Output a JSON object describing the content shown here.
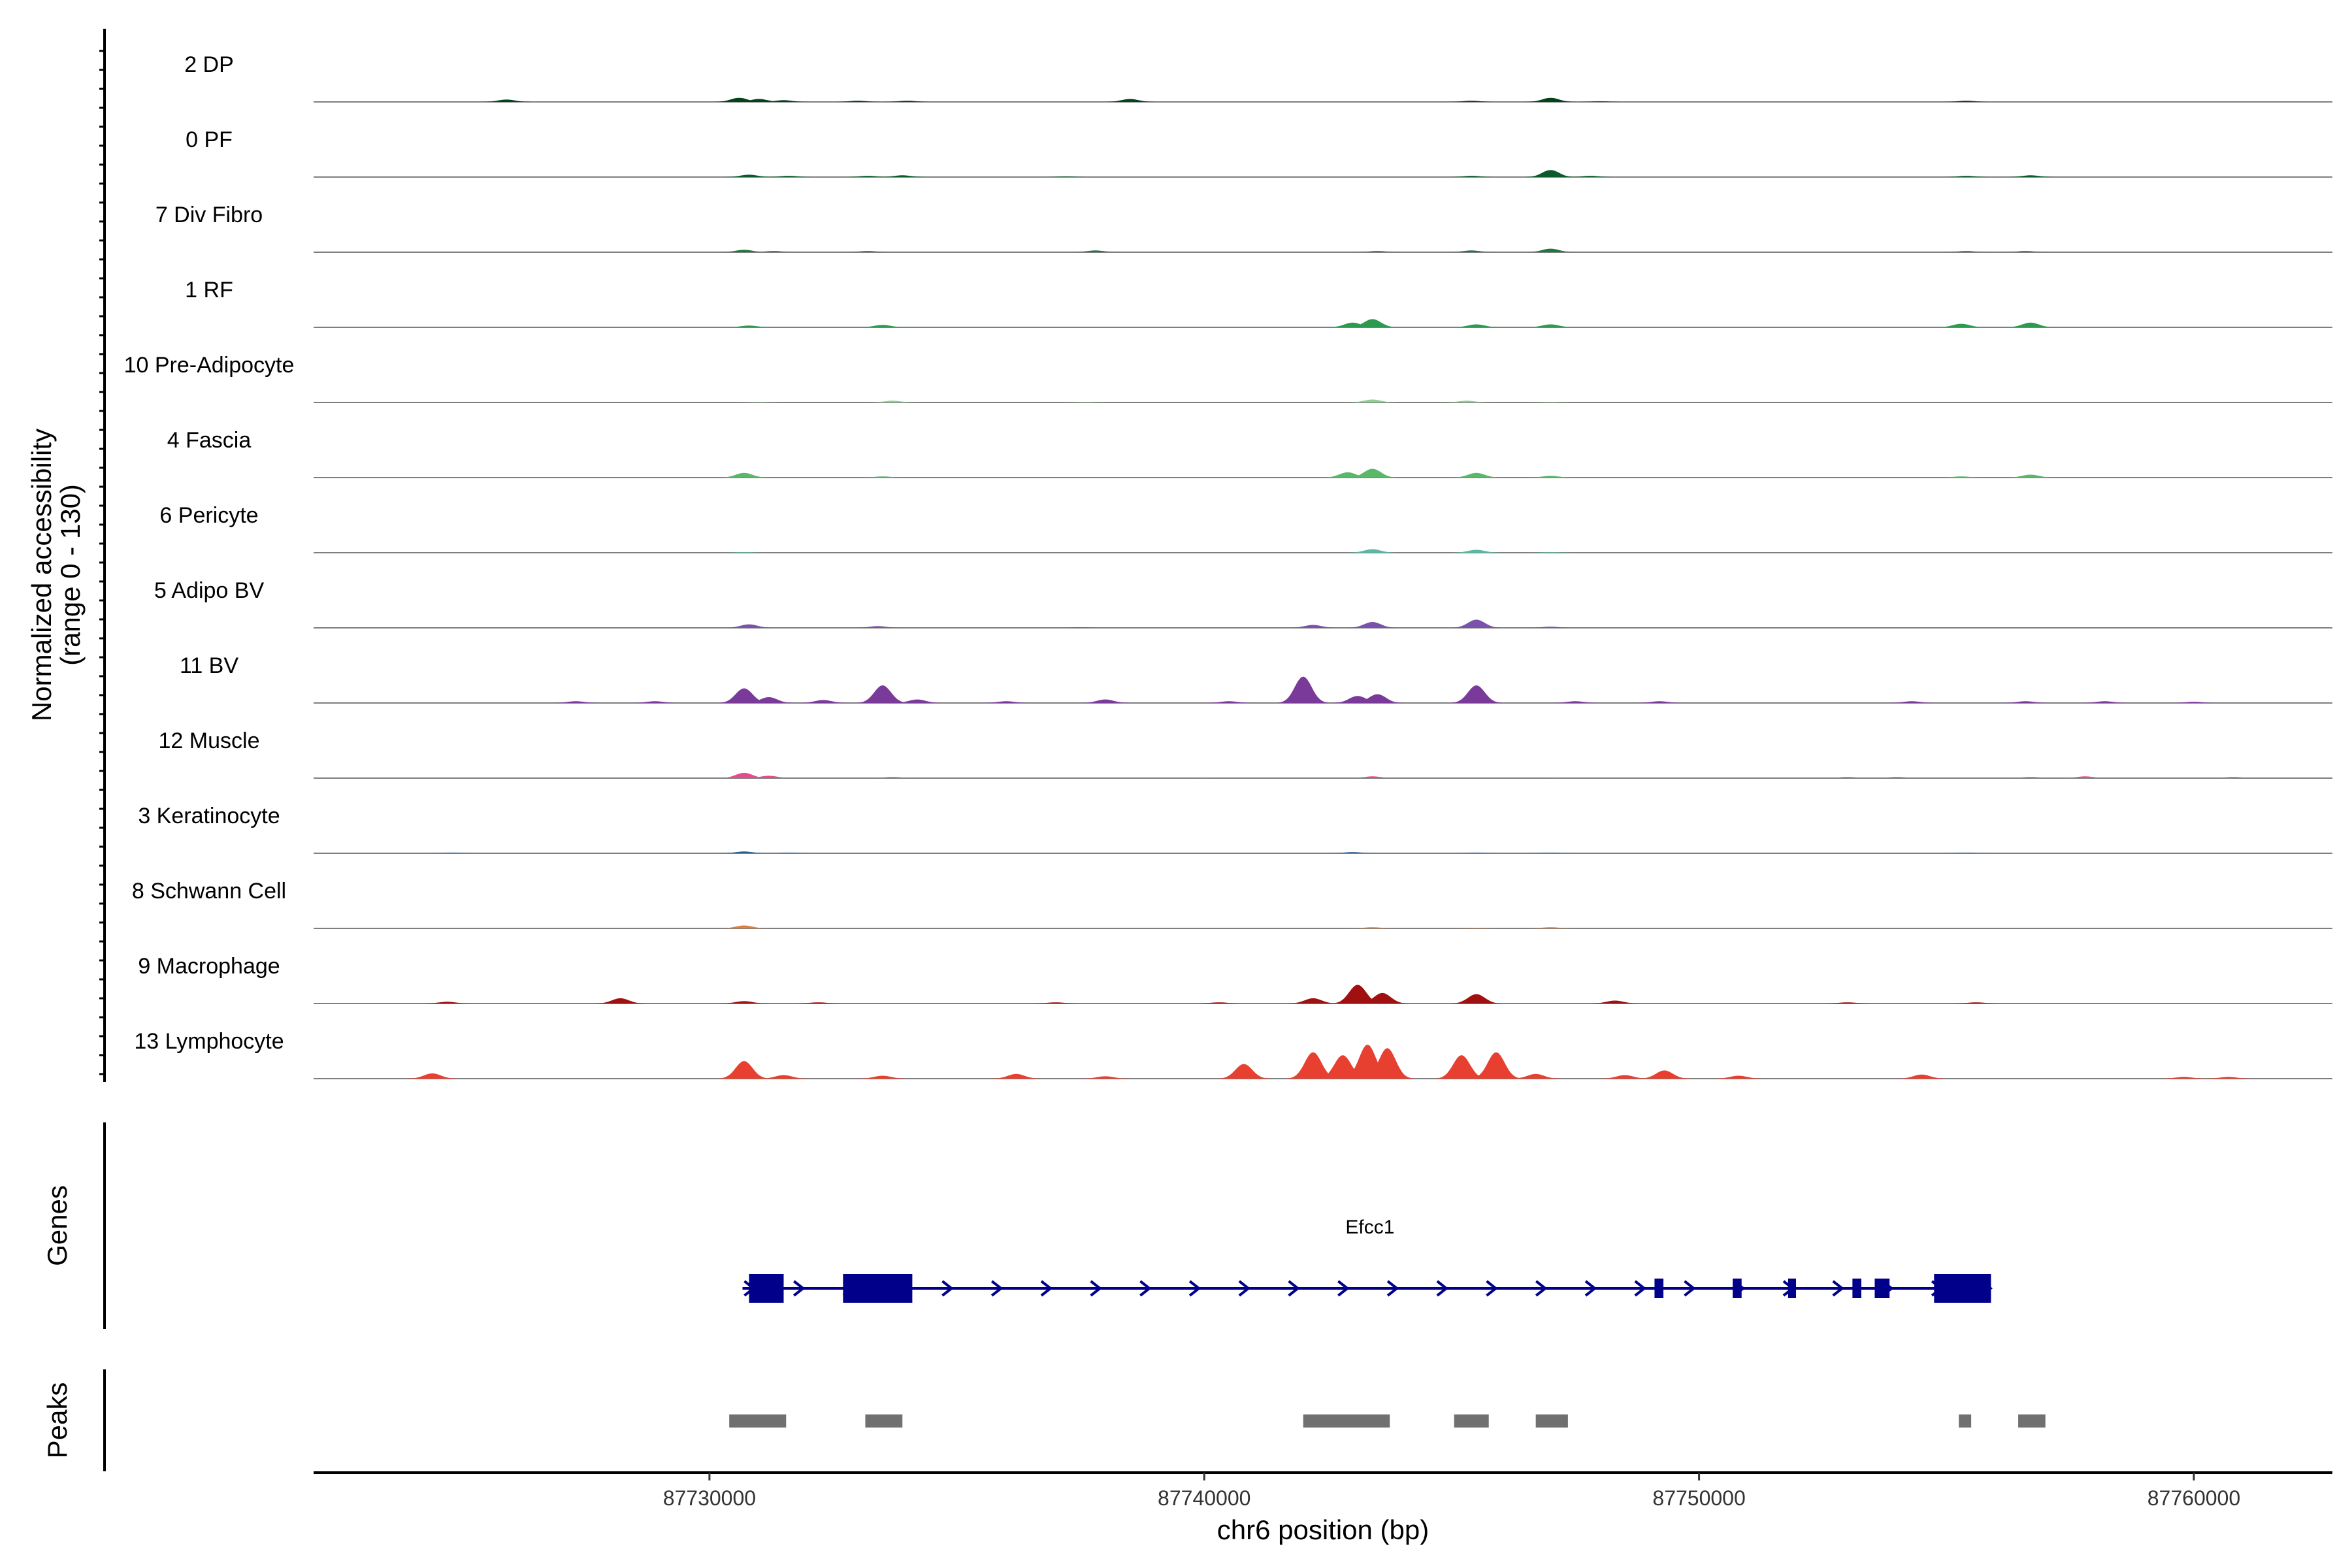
{
  "chart_data": {
    "type": "area",
    "ylabel_line1": "Normalized accessibility",
    "ylabel_line2": "(range 0 - 130)",
    "ylim": [
      0,
      130
    ],
    "xlabel": "chr6 position (bp)",
    "xlim": [
      87722000,
      87762800
    ],
    "x_ticks": [
      87730000,
      87740000,
      87750000,
      87760000
    ],
    "x_tick_labels": [
      "87730000",
      "87740000",
      "87750000",
      "87760000"
    ],
    "genes_label": "Genes",
    "peaks_label": "Peaks",
    "tracks": [
      {
        "name": "2 DP",
        "color": "#00441b",
        "peaks": [
          [
            87725900,
            4
          ],
          [
            87730600,
            7
          ],
          [
            87731000,
            5
          ],
          [
            87731500,
            3
          ],
          [
            87733000,
            2
          ],
          [
            87734000,
            2
          ],
          [
            87738500,
            5
          ],
          [
            87745400,
            2
          ],
          [
            87747000,
            7
          ],
          [
            87748000,
            1
          ],
          [
            87755400,
            2
          ]
        ]
      },
      {
        "name": "0 PF",
        "color": "#0a5a2a",
        "peaks": [
          [
            87730800,
            4
          ],
          [
            87731600,
            2
          ],
          [
            87733200,
            2
          ],
          [
            87733900,
            3
          ],
          [
            87737200,
            1
          ],
          [
            87745400,
            2
          ],
          [
            87747000,
            12
          ],
          [
            87747800,
            2
          ],
          [
            87755400,
            2
          ],
          [
            87756700,
            3
          ]
        ]
      },
      {
        "name": "7 Div Fibro",
        "color": "#1a7a40",
        "peaks": [
          [
            87730700,
            4
          ],
          [
            87731300,
            2
          ],
          [
            87733200,
            2
          ],
          [
            87737800,
            3
          ],
          [
            87743500,
            2
          ],
          [
            87745400,
            3
          ],
          [
            87747000,
            6
          ],
          [
            87755400,
            2
          ],
          [
            87756600,
            2
          ]
        ]
      },
      {
        "name": "1 RF",
        "color": "#2d9a50",
        "peaks": [
          [
            87730800,
            3
          ],
          [
            87733500,
            4
          ],
          [
            87743000,
            8
          ],
          [
            87743400,
            14
          ],
          [
            87745500,
            5
          ],
          [
            87747000,
            5
          ],
          [
            87755300,
            6
          ],
          [
            87756700,
            8
          ]
        ]
      },
      {
        "name": "10 Pre-Adipocyte",
        "color": "#8fd18f",
        "peaks": [
          [
            87731000,
            1
          ],
          [
            87733700,
            3
          ],
          [
            87737600,
            1
          ],
          [
            87743400,
            5
          ],
          [
            87745300,
            3
          ],
          [
            87747000,
            1
          ]
        ]
      },
      {
        "name": "4 Fascia",
        "color": "#5ab86a",
        "peaks": [
          [
            87730700,
            8
          ],
          [
            87733500,
            2
          ],
          [
            87742900,
            9
          ],
          [
            87743400,
            15
          ],
          [
            87745500,
            8
          ],
          [
            87747000,
            3
          ],
          [
            87755300,
            2
          ],
          [
            87756700,
            5
          ]
        ]
      },
      {
        "name": "6 Pericyte",
        "color": "#5cb8a0",
        "peaks": [
          [
            87730700,
            1
          ],
          [
            87743400,
            6
          ],
          [
            87745500,
            5
          ],
          [
            87747000,
            1
          ]
        ]
      },
      {
        "name": "5 Adipo BV",
        "color": "#7b52ab",
        "peaks": [
          [
            87730800,
            6
          ],
          [
            87733400,
            3
          ],
          [
            87737500,
            1
          ],
          [
            87742200,
            5
          ],
          [
            87743400,
            10
          ],
          [
            87745500,
            14
          ],
          [
            87747000,
            2
          ]
        ]
      },
      {
        "name": "11 BV",
        "color": "#7a3a9a",
        "peaks": [
          [
            87727300,
            3
          ],
          [
            87728900,
            3
          ],
          [
            87730700,
            25
          ],
          [
            87731200,
            10
          ],
          [
            87732300,
            5
          ],
          [
            87733500,
            30
          ],
          [
            87734200,
            6
          ],
          [
            87736000,
            3
          ],
          [
            87738000,
            6
          ],
          [
            87740500,
            3
          ],
          [
            87742000,
            45
          ],
          [
            87743100,
            12
          ],
          [
            87743500,
            15
          ],
          [
            87745500,
            30
          ],
          [
            87747500,
            3
          ],
          [
            87749200,
            3
          ],
          [
            87754300,
            3
          ],
          [
            87756600,
            3
          ],
          [
            87758200,
            3
          ],
          [
            87760000,
            2
          ]
        ]
      },
      {
        "name": "12 Muscle",
        "color": "#e64b8c",
        "peaks": [
          [
            87730700,
            9
          ],
          [
            87731200,
            4
          ],
          [
            87733700,
            2
          ],
          [
            87740000,
            1
          ],
          [
            87743400,
            3
          ],
          [
            87747000,
            1
          ],
          [
            87753000,
            2
          ],
          [
            87754000,
            2
          ],
          [
            87756700,
            2
          ],
          [
            87757800,
            3
          ],
          [
            87760800,
            2
          ]
        ]
      },
      {
        "name": "3 Keratinocyte",
        "color": "#2b5c8a",
        "peaks": [
          [
            87724800,
            1
          ],
          [
            87730700,
            3
          ],
          [
            87731600,
            1
          ],
          [
            87743000,
            2
          ],
          [
            87745500,
            1
          ],
          [
            87747000,
            1
          ],
          [
            87755400,
            1
          ]
        ]
      },
      {
        "name": "8 Schwann Cell",
        "color": "#e08040",
        "peaks": [
          [
            87730700,
            5
          ],
          [
            87743400,
            2
          ],
          [
            87745500,
            1
          ],
          [
            87747000,
            2
          ]
        ]
      },
      {
        "name": "9 Macrophage",
        "color": "#a01010",
        "peaks": [
          [
            87724700,
            3
          ],
          [
            87728200,
            9
          ],
          [
            87730700,
            4
          ],
          [
            87732200,
            2
          ],
          [
            87737000,
            2
          ],
          [
            87740300,
            2
          ],
          [
            87742200,
            9
          ],
          [
            87743100,
            32
          ],
          [
            87743600,
            18
          ],
          [
            87745500,
            16
          ],
          [
            87748300,
            5
          ],
          [
            87753000,
            2
          ],
          [
            87755600,
            2
          ]
        ]
      },
      {
        "name": "13 Lymphocyte",
        "color": "#e84030",
        "peaks": [
          [
            87724400,
            9
          ],
          [
            87730700,
            30
          ],
          [
            87731500,
            6
          ],
          [
            87733500,
            5
          ],
          [
            87736200,
            8
          ],
          [
            87738000,
            4
          ],
          [
            87740800,
            25
          ],
          [
            87742200,
            45
          ],
          [
            87742800,
            40
          ],
          [
            87743300,
            58
          ],
          [
            87743700,
            52
          ],
          [
            87745200,
            40
          ],
          [
            87745900,
            45
          ],
          [
            87746700,
            8
          ],
          [
            87748500,
            6
          ],
          [
            87749300,
            14
          ],
          [
            87750800,
            5
          ],
          [
            87754500,
            7
          ],
          [
            87759800,
            3
          ],
          [
            87760700,
            3
          ]
        ]
      }
    ],
    "gene": {
      "name": "Efcc1",
      "color": "#00008b",
      "start": 87730800,
      "end": 87755900,
      "strand": "+",
      "exons": [
        [
          87730800,
          87731500,
          "wide"
        ],
        [
          87732700,
          87734100,
          "wide"
        ],
        [
          87749100,
          87749280,
          "narrow"
        ],
        [
          87750680,
          87750860,
          "narrow"
        ],
        [
          87751800,
          87751960,
          "narrow"
        ],
        [
          87753100,
          87753280,
          "narrow"
        ],
        [
          87753550,
          87753850,
          "narrow"
        ],
        [
          87754750,
          87755900,
          "wide"
        ]
      ]
    },
    "peak_regions": [
      [
        87730400,
        87731550
      ],
      [
        87733150,
        87733900
      ],
      [
        87742000,
        87743750
      ],
      [
        87745050,
        87745750
      ],
      [
        87746700,
        87747350
      ],
      [
        87755250,
        87755500
      ],
      [
        87756450,
        87757000
      ]
    ]
  }
}
